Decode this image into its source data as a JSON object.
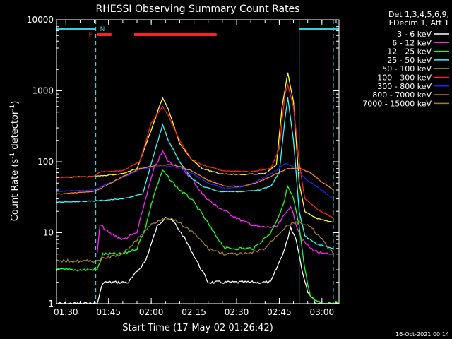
{
  "chart_data": {
    "type": "line",
    "title": "RHESSI Observing Summary Count Rates",
    "xlabel": "Start Time (17-May-02 01:26:42)",
    "ylabel": "Count Rate (s⁻¹ detector⁻¹)",
    "ylabel_parts": {
      "base": "Count Rate (s",
      "sup1": "-1",
      "mid": " detector",
      "sup2": "-1",
      "end": ")"
    },
    "y_scale": "log",
    "xlim": [
      "01:26:42",
      "03:06:00"
    ],
    "ylim": [
      1,
      10000
    ],
    "x_ticks": [
      "01:30",
      "01:45",
      "02:00",
      "02:15",
      "02:30",
      "02:45",
      "03:00"
    ],
    "y_ticks": [
      {
        "value": 1,
        "label": "1"
      },
      {
        "value": 10,
        "label": "10"
      },
      {
        "value": 100,
        "label": "100"
      },
      {
        "value": 1000,
        "label": "1000"
      },
      {
        "value": 10000,
        "label": "10000"
      }
    ],
    "legend_header": [
      "Det 1,3,4,5,6,9,",
      "FDecim 1, Att 1"
    ],
    "legend_position": "right",
    "timestamp": "16-Oct-2021 00:14",
    "flags": [
      {
        "label": "F",
        "color": "#ff2020",
        "segments": [
          [
            "01:41",
            "01:46"
          ],
          [
            "01:54",
            "02:23"
          ]
        ]
      },
      {
        "label": "N",
        "color": "#30d0d8",
        "segments": [
          [
            "01:26:42",
            "01:40:30"
          ],
          [
            "02:52",
            "03:06"
          ]
        ]
      }
    ],
    "vertical_markers": [
      {
        "time": "01:40:30",
        "style": "dashed",
        "color": "#30d0d8"
      },
      {
        "time": "02:52",
        "style": "solid",
        "color": "#30d0d8"
      },
      {
        "time": "03:04",
        "style": "dashed",
        "color": "#30d0d8"
      }
    ],
    "series": [
      {
        "name": "3 - 6 keV",
        "color": "#ffffff",
        "points": [
          [
            "01:26:42",
            1
          ],
          [
            "01:41",
            1
          ],
          [
            "01:43",
            2
          ],
          [
            "01:52",
            2
          ],
          [
            "01:58",
            4
          ],
          [
            "02:02",
            12
          ],
          [
            "02:05",
            17
          ],
          [
            "02:08",
            14
          ],
          [
            "02:12",
            8
          ],
          [
            "02:16",
            4
          ],
          [
            "02:20",
            2
          ],
          [
            "02:32",
            2
          ],
          [
            "02:42",
            2
          ],
          [
            "02:47",
            6
          ],
          [
            "02:49",
            12
          ],
          [
            "02:51",
            8
          ],
          [
            "02:53",
            3
          ],
          [
            "02:55",
            1.5
          ],
          [
            "02:58",
            1
          ],
          [
            "03:06",
            1
          ]
        ]
      },
      {
        "name": "6 - 12 keV",
        "color": "#ff20ff",
        "points": [
          [
            "01:41",
            5
          ],
          [
            "01:42",
            13
          ],
          [
            "01:45",
            10
          ],
          [
            "01:50",
            8
          ],
          [
            "01:55",
            10
          ],
          [
            "01:58",
            30
          ],
          [
            "02:01",
            80
          ],
          [
            "02:04",
            140
          ],
          [
            "02:06",
            100
          ],
          [
            "02:10",
            85
          ],
          [
            "02:14",
            60
          ],
          [
            "02:18",
            35
          ],
          [
            "02:22",
            25
          ],
          [
            "02:28",
            18
          ],
          [
            "02:33",
            14
          ],
          [
            "02:38",
            12
          ],
          [
            "02:44",
            12
          ],
          [
            "02:47",
            18
          ],
          [
            "02:49",
            24
          ],
          [
            "02:51",
            13
          ],
          [
            "02:53",
            8
          ],
          [
            "02:56",
            6
          ],
          [
            "03:00",
            5
          ],
          [
            "03:04",
            5
          ]
        ]
      },
      {
        "name": "12 - 25 keV",
        "color": "#20ff20",
        "points": [
          [
            "01:26:42",
            3
          ],
          [
            "01:41",
            3
          ],
          [
            "01:43",
            5
          ],
          [
            "01:50",
            5
          ],
          [
            "01:55",
            6
          ],
          [
            "01:58",
            12
          ],
          [
            "02:01",
            35
          ],
          [
            "02:04",
            75
          ],
          [
            "02:06",
            60
          ],
          [
            "02:10",
            40
          ],
          [
            "02:14",
            30
          ],
          [
            "02:18",
            18
          ],
          [
            "02:22",
            10
          ],
          [
            "02:26",
            6
          ],
          [
            "02:36",
            6
          ],
          [
            "02:42",
            10
          ],
          [
            "02:46",
            22
          ],
          [
            "02:48",
            45
          ],
          [
            "02:50",
            30
          ],
          [
            "02:52",
            12
          ],
          [
            "02:54",
            3
          ],
          [
            "02:56",
            1.2
          ],
          [
            "03:00",
            1
          ],
          [
            "03:06",
            1
          ]
        ]
      },
      {
        "name": "25 - 50 keV",
        "color": "#30ffff",
        "points": [
          [
            "01:26:42",
            27
          ],
          [
            "01:40",
            28
          ],
          [
            "01:50",
            30
          ],
          [
            "01:57",
            35
          ],
          [
            "02:01",
            130
          ],
          [
            "02:04",
            330
          ],
          [
            "02:06",
            200
          ],
          [
            "02:10",
            100
          ],
          [
            "02:14",
            60
          ],
          [
            "02:18",
            45
          ],
          [
            "02:24",
            38
          ],
          [
            "02:32",
            38
          ],
          [
            "02:38",
            40
          ],
          [
            "02:42",
            45
          ],
          [
            "02:45",
            70
          ],
          [
            "02:47",
            400
          ],
          [
            "02:48",
            800
          ],
          [
            "02:50",
            200
          ],
          [
            "02:52",
            20
          ],
          [
            "02:54",
            9
          ],
          [
            "02:58",
            7
          ],
          [
            "03:04",
            6
          ]
        ]
      },
      {
        "name": "50 - 100 keV",
        "color": "#ffff20",
        "points": [
          [
            "01:26:42",
            60
          ],
          [
            "01:40",
            62
          ],
          [
            "01:50",
            68
          ],
          [
            "01:55",
            80
          ],
          [
            "02:00",
            280
          ],
          [
            "02:04",
            800
          ],
          [
            "02:06",
            550
          ],
          [
            "02:10",
            180
          ],
          [
            "02:14",
            110
          ],
          [
            "02:18",
            80
          ],
          [
            "02:24",
            68
          ],
          [
            "02:32",
            66
          ],
          [
            "02:40",
            68
          ],
          [
            "02:44",
            90
          ],
          [
            "02:46",
            600
          ],
          [
            "02:48",
            1800
          ],
          [
            "02:50",
            700
          ],
          [
            "02:52",
            50
          ],
          [
            "02:54",
            20
          ],
          [
            "02:58",
            16
          ],
          [
            "03:04",
            14
          ]
        ]
      },
      {
        "name": "100 - 300 keV",
        "color": "#ff2020",
        "points": [
          [
            "01:26:42",
            60
          ],
          [
            "01:40",
            62
          ],
          [
            "01:42",
            72
          ],
          [
            "01:50",
            75
          ],
          [
            "01:56",
            100
          ],
          [
            "02:00",
            350
          ],
          [
            "02:04",
            600
          ],
          [
            "02:06",
            450
          ],
          [
            "02:10",
            200
          ],
          [
            "02:14",
            110
          ],
          [
            "02:18",
            90
          ],
          [
            "02:25",
            75
          ],
          [
            "02:35",
            72
          ],
          [
            "02:42",
            80
          ],
          [
            "02:45",
            150
          ],
          [
            "02:47",
            900
          ],
          [
            "02:48",
            1200
          ],
          [
            "02:50",
            600
          ],
          [
            "02:52",
            100
          ],
          [
            "02:54",
            30
          ],
          [
            "02:58",
            22
          ],
          [
            "03:04",
            16
          ]
        ]
      },
      {
        "name": "300 - 800 keV",
        "color": "#2020ff",
        "points": [
          [
            "01:26:42",
            38
          ],
          [
            "01:40",
            40
          ],
          [
            "01:45",
            50
          ],
          [
            "01:50",
            60
          ],
          [
            "01:56",
            78
          ],
          [
            "02:02",
            85
          ],
          [
            "02:08",
            85
          ],
          [
            "02:14",
            70
          ],
          [
            "02:20",
            50
          ],
          [
            "02:26",
            42
          ],
          [
            "02:32",
            44
          ],
          [
            "02:38",
            55
          ],
          [
            "02:44",
            75
          ],
          [
            "02:47",
            95
          ],
          [
            "02:50",
            85
          ],
          [
            "02:54",
            58
          ],
          [
            "02:58",
            45
          ],
          [
            "03:04",
            30
          ]
        ]
      },
      {
        "name": "800 - 7000 keV",
        "color": "#ff8020",
        "points": [
          [
            "01:26:42",
            35
          ],
          [
            "01:40",
            38
          ],
          [
            "01:45",
            48
          ],
          [
            "01:50",
            62
          ],
          [
            "01:56",
            80
          ],
          [
            "02:02",
            90
          ],
          [
            "02:08",
            90
          ],
          [
            "02:14",
            75
          ],
          [
            "02:20",
            55
          ],
          [
            "02:26",
            45
          ],
          [
            "02:32",
            45
          ],
          [
            "02:38",
            52
          ],
          [
            "02:44",
            68
          ],
          [
            "02:48",
            80
          ],
          [
            "02:52",
            82
          ],
          [
            "02:56",
            70
          ],
          [
            "03:00",
            52
          ],
          [
            "03:04",
            40
          ]
        ]
      },
      {
        "name": "7000 - 15000 keV",
        "color": "#a08020",
        "points": [
          [
            "01:26:42",
            4
          ],
          [
            "01:40",
            4
          ],
          [
            "01:45",
            4.5
          ],
          [
            "01:50",
            5
          ],
          [
            "01:55",
            8
          ],
          [
            "02:00",
            13
          ],
          [
            "02:04",
            16
          ],
          [
            "02:08",
            15
          ],
          [
            "02:12",
            12
          ],
          [
            "02:16",
            9
          ],
          [
            "02:20",
            6
          ],
          [
            "02:26",
            5
          ],
          [
            "02:34",
            5
          ],
          [
            "02:40",
            6
          ],
          [
            "02:44",
            9
          ],
          [
            "02:48",
            13
          ],
          [
            "02:52",
            14
          ],
          [
            "02:56",
            12
          ],
          [
            "03:00",
            8
          ],
          [
            "03:04",
            5
          ]
        ]
      }
    ]
  }
}
